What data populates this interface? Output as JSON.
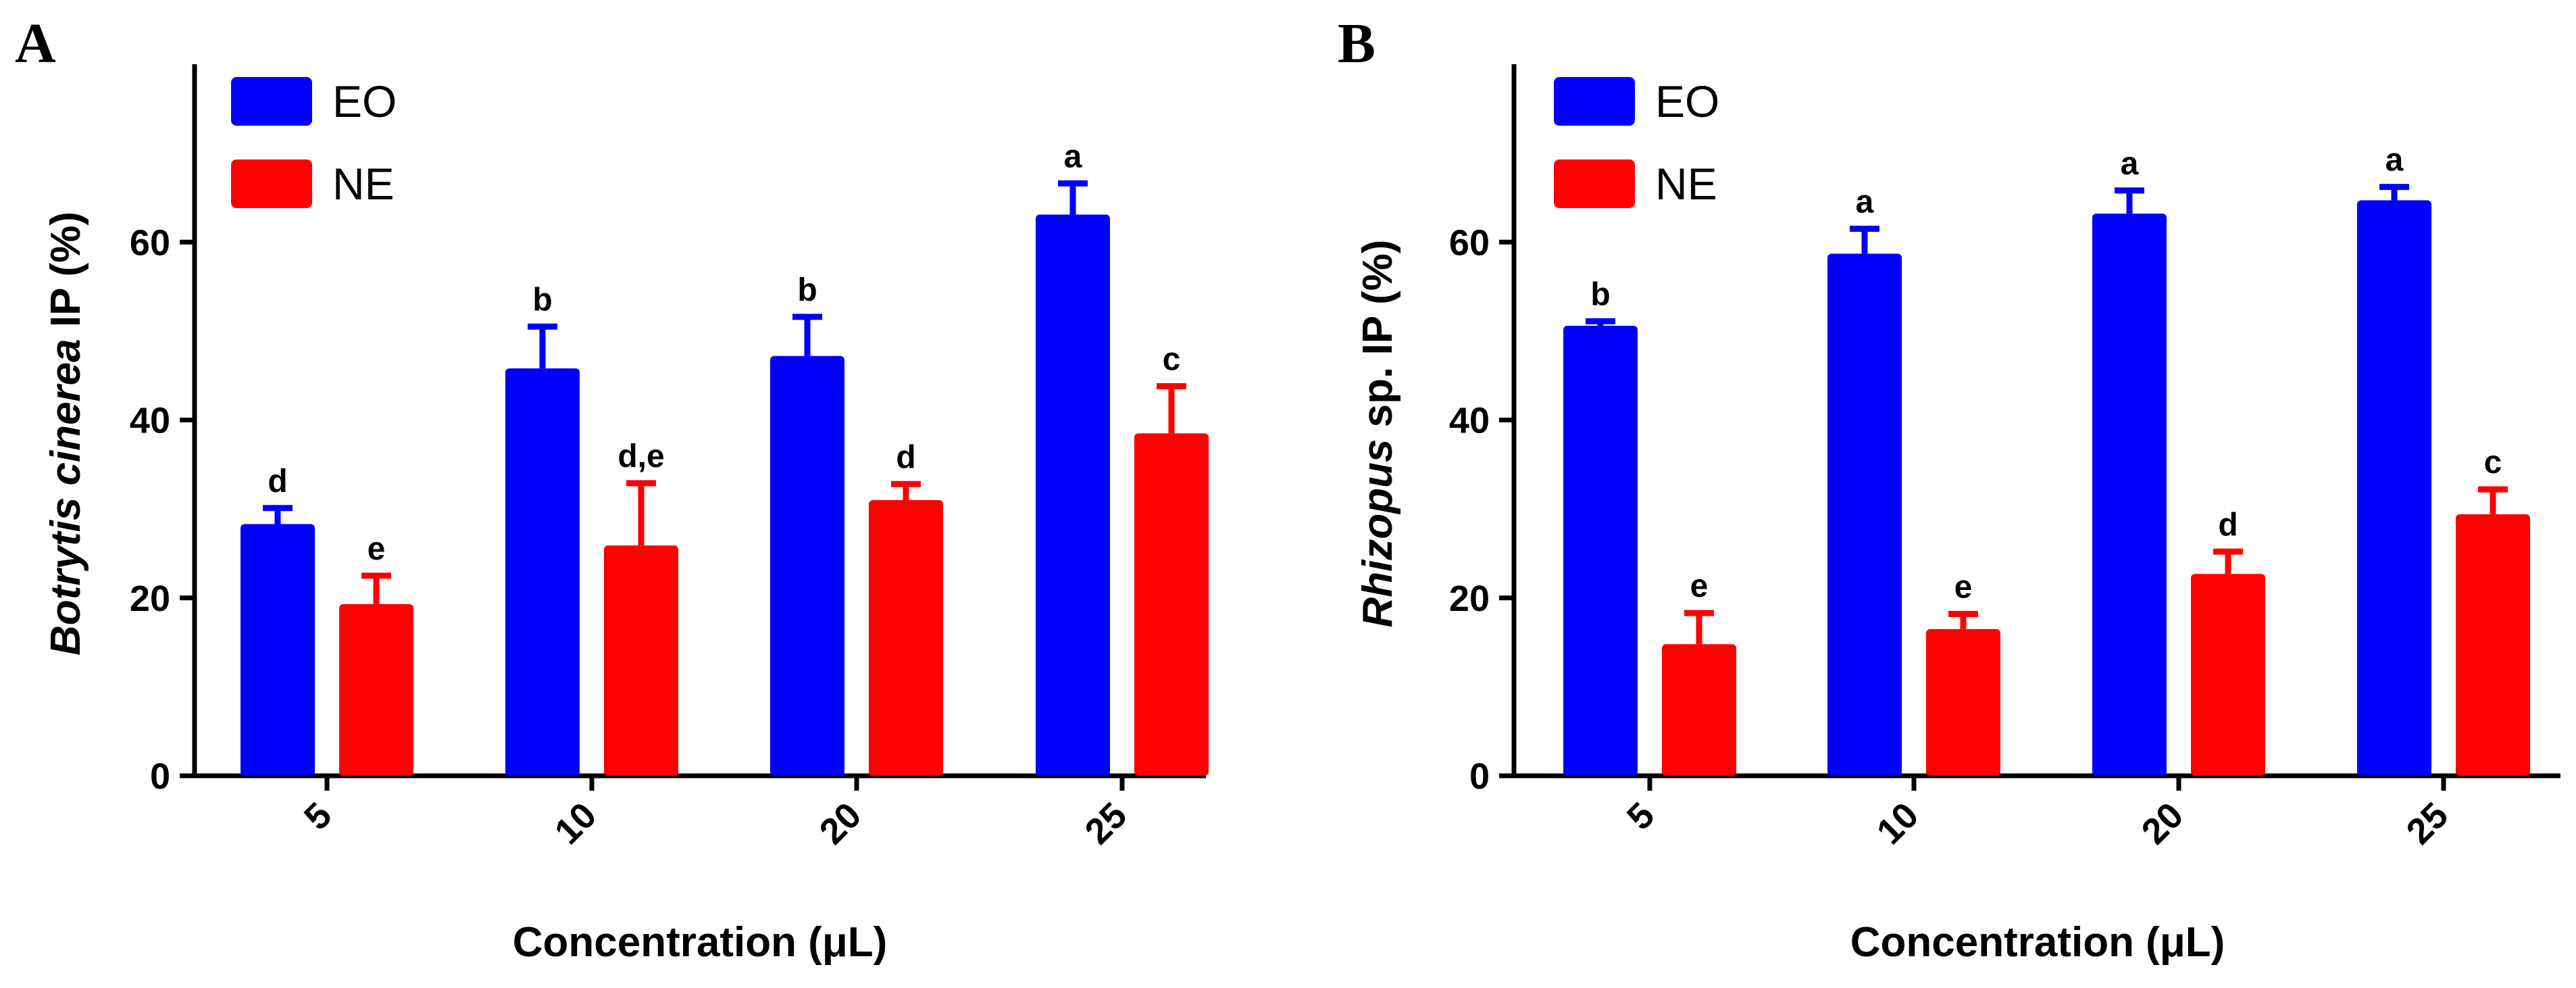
{
  "chart_data": [
    {
      "type": "bar",
      "panel": "A",
      "categories": [
        "5",
        "10",
        "20",
        "25"
      ],
      "series": [
        {
          "name": "EO",
          "color": "#0000ff",
          "values": [
            28.3,
            45.8,
            47.2,
            63.1
          ],
          "errors": [
            1.8,
            4.7,
            4.4,
            3.5
          ],
          "labels": [
            "d",
            "b",
            "b",
            "a"
          ]
        },
        {
          "name": "NE",
          "color": "#ff0000",
          "values": [
            19.3,
            25.9,
            31.0,
            38.5
          ],
          "errors": [
            3.2,
            7.0,
            1.8,
            5.3
          ],
          "labels": [
            "e",
            "d,e",
            "d",
            "c"
          ]
        }
      ],
      "ylabel_italic": "Botrytis cinerea",
      "ylabel_rest": " IP (%)",
      "xlabel": "Concentration (μL)",
      "yticks": [
        "0",
        "20",
        "40",
        "60"
      ],
      "ylim": [
        0,
        80
      ],
      "legend_position": "top-left"
    },
    {
      "type": "bar",
      "panel": "B",
      "categories": [
        "5",
        "10",
        "20",
        "25"
      ],
      "series": [
        {
          "name": "EO",
          "color": "#0000ff",
          "values": [
            50.6,
            58.7,
            63.2,
            64.7
          ],
          "errors": [
            0.5,
            2.8,
            2.6,
            1.5
          ],
          "labels": [
            "b",
            "a",
            "a",
            "a"
          ]
        },
        {
          "name": "NE",
          "color": "#ff0000",
          "values": [
            14.8,
            16.5,
            22.7,
            29.4
          ],
          "errors": [
            3.5,
            1.7,
            2.5,
            2.8
          ],
          "labels": [
            "e",
            "e",
            "d",
            "c"
          ]
        }
      ],
      "ylabel_italic": "Rhizopus",
      "ylabel_rest": " sp. IP (%)",
      "xlabel": "Concentration (μL)",
      "yticks": [
        "0",
        "20",
        "40",
        "60"
      ],
      "ylim": [
        0,
        80
      ],
      "legend_position": "top-left"
    }
  ]
}
